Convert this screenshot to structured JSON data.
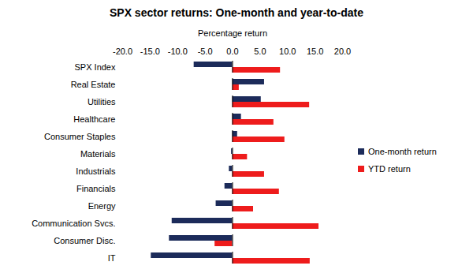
{
  "chart_data": {
    "type": "bar",
    "orientation": "horizontal",
    "title": "SPX sector returns: One-month and year-to-date",
    "xlabel": "Percentage return",
    "categories": [
      "SPX Index",
      "Real Estate",
      "Utilities",
      "Healthcare",
      "Consumer Staples",
      "Materials",
      "Industrials",
      "Financials",
      "Energy",
      "Communication Svcs.",
      "Consumer Disc.",
      "IT"
    ],
    "series": [
      {
        "name": "One-month return",
        "color": "#1c2b5a",
        "values": [
          -7.0,
          5.8,
          5.2,
          1.6,
          0.9,
          -0.2,
          -0.6,
          -1.4,
          -3.0,
          -11.0,
          -11.5,
          -14.8
        ]
      },
      {
        "name": "YTD return",
        "color": "#ee1c1c",
        "values": [
          8.7,
          1.2,
          14.0,
          7.5,
          9.5,
          2.7,
          5.8,
          8.5,
          3.8,
          15.7,
          -3.2,
          14.1
        ]
      }
    ],
    "xlim": [
      -20,
      20
    ],
    "xticks": [
      {
        "value": -20,
        "label": "-20.0"
      },
      {
        "value": -15,
        "label": "-15.0"
      },
      {
        "value": -10,
        "label": "-10.0"
      },
      {
        "value": -5,
        "label": "-5.0"
      },
      {
        "value": 0,
        "label": "0.0"
      },
      {
        "value": 5,
        "label": "5.0"
      },
      {
        "value": 10,
        "label": "10.0"
      },
      {
        "value": 15,
        "label": "15.0"
      },
      {
        "value": 20,
        "label": "20.0"
      }
    ],
    "grid": false,
    "legend": "right"
  }
}
